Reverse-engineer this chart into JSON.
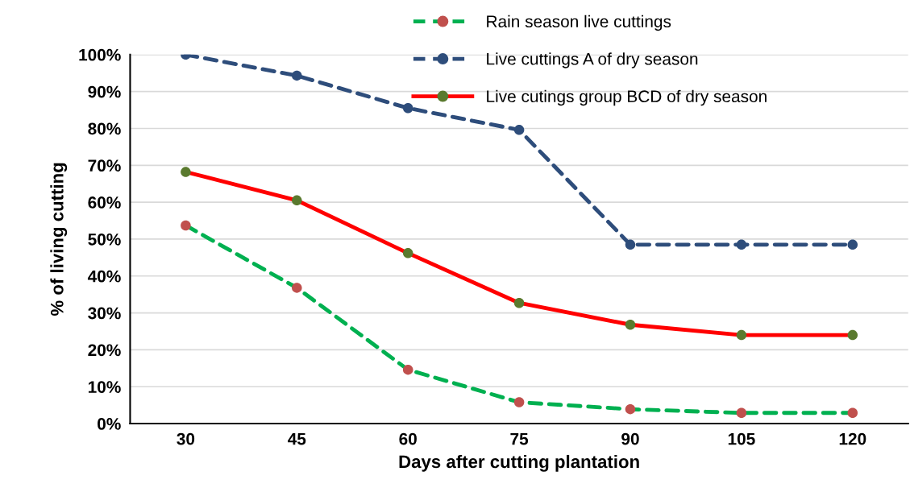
{
  "chart_data": {
    "type": "line",
    "xlabel": "Days after cutting plantation",
    "ylabel": "% of living cutting",
    "categories": [
      "30",
      "45",
      "60",
      "75",
      "90",
      "105",
      "120"
    ],
    "series": [
      {
        "name": "Rain season live cuttings",
        "color": "#00b050",
        "colors": [
          "#c0504d",
          "#c0504d",
          "#c0504d",
          "#c0504d",
          "#c0504d",
          "#c0504d",
          "#c0504d"
        ],
        "line_style": "dashed",
        "values": [
          53.7,
          36.8,
          14.6,
          5.8,
          3.9,
          2.9,
          2.9
        ]
      },
      {
        "name": "Live cuttings A of dry season",
        "color": "#2e4d7b",
        "colors": [
          "#2e4d7b",
          "#2e4d7b",
          "#2e4d7b",
          "#2e4d7b",
          "#2e4d7b",
          "#2e4d7b",
          "#2e4d7b"
        ],
        "line_style": "dashed",
        "values": [
          100,
          94.3,
          85.5,
          79.6,
          48.5,
          48.5,
          48.5
        ]
      },
      {
        "name": "Live cutings group BCD of dry season",
        "color": "#ff0000",
        "colors": [
          "#5a7a2e",
          "#5a7a2e",
          "#5a7a2e",
          "#5a7a2e",
          "#5a7a2e",
          "#5a7a2e",
          "#5a7a2e"
        ],
        "line_style": "solid",
        "values": [
          68.2,
          60.5,
          46.2,
          32.7,
          26.8,
          24.0,
          24.0
        ]
      }
    ],
    "ylim": [
      0,
      100
    ],
    "yticks": [
      {
        "value": 0,
        "label": "0%"
      },
      {
        "value": 10,
        "label": "10%"
      },
      {
        "value": 20,
        "label": "20%"
      },
      {
        "value": 30,
        "label": "30%"
      },
      {
        "value": 40,
        "label": "40%"
      },
      {
        "value": 50,
        "label": "50%"
      },
      {
        "value": 60,
        "label": "60%"
      },
      {
        "value": 70,
        "label": "70%"
      },
      {
        "value": 80,
        "label": "80%"
      },
      {
        "value": 90,
        "label": "90%"
      },
      {
        "value": 100,
        "label": "100%"
      }
    ],
    "grid": "y",
    "legend": "top right",
    "marker": "circle"
  }
}
